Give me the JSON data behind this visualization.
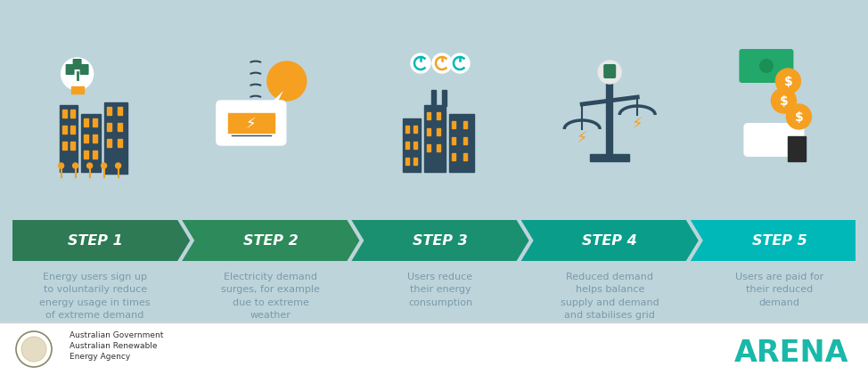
{
  "bg_color": "#bdd4db",
  "footer_bg": "#ffffff",
  "steps": [
    {
      "label": "STEP 1",
      "color": "#2d7a55",
      "description": "Energy users sign up\nto voluntarily reduce\nenergy usage in times\nof extreme demand"
    },
    {
      "label": "STEP 2",
      "color": "#2d8a5a",
      "description": "Electricity demand\nsurges, for example\ndue to extreme\nweather"
    },
    {
      "label": "STEP 3",
      "color": "#1a9070",
      "description": "Users reduce\ntheir energy\nconsumption"
    },
    {
      "label": "STEP 4",
      "color": "#0a9e8a",
      "description": "Reduced demand\nhelps balance\nsupply and demand\nand stabilises grid"
    },
    {
      "label": "STEP 5",
      "color": "#00b8b8",
      "description": "Users are paid for\ntheir reduced\ndemand"
    }
  ],
  "step_label_color": "#ffffff",
  "desc_color": "#7a9aaa",
  "arena_color": "#1ab8a8",
  "dark_blue": "#2d4a5e",
  "orange": "#f5a020",
  "green_icon": "#2d7a55",
  "teal_icon": "#00b8b8",
  "white": "#ffffff",
  "title_fontsize": 11.5,
  "desc_fontsize": 8.0
}
